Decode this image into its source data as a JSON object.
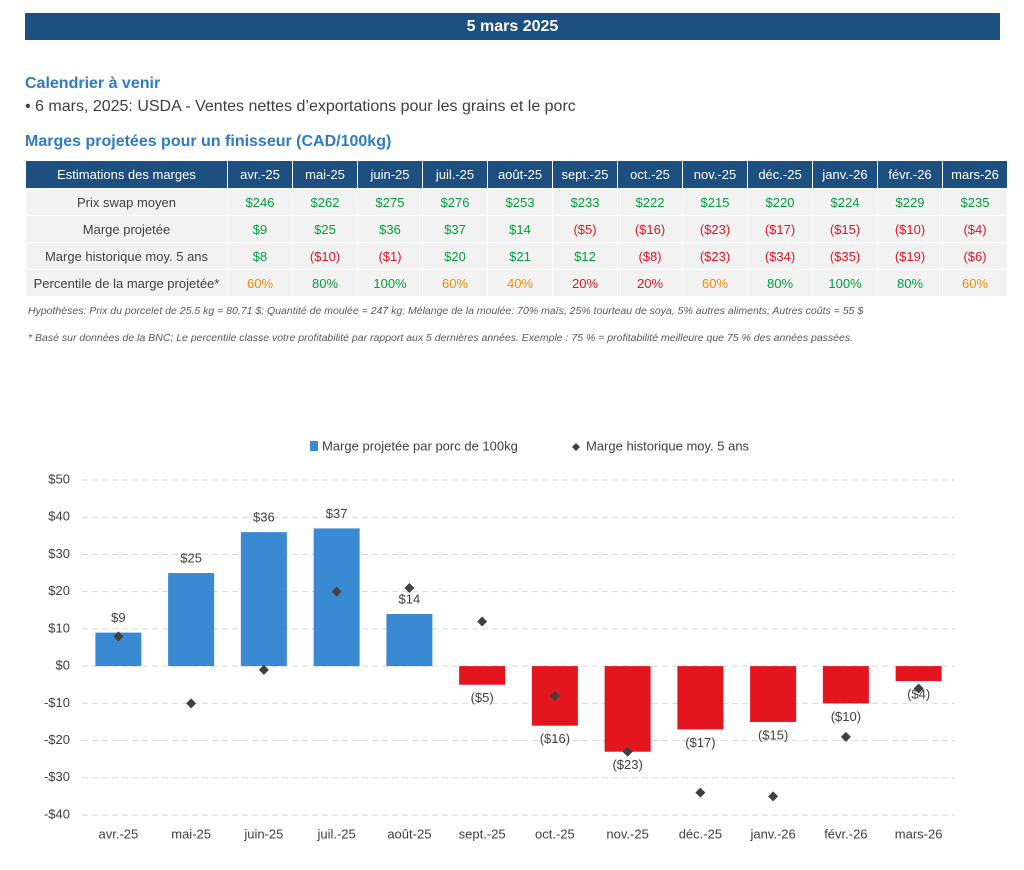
{
  "header": {
    "title": "5 mars 2025"
  },
  "calendar": {
    "title": "Calendrier à venir",
    "items": [
      "6 mars, 2025: USDA - Ventes nettes d’exportations pour les grains et le porc"
    ]
  },
  "table": {
    "title": "Marges projetées pour un finisseur (CAD/100kg)",
    "columns": [
      "Estimations des marges",
      "avr.-25",
      "mai-25",
      "juin-25",
      "juil.-25",
      "août-25",
      "sept.-25",
      "oct.-25",
      "nov.-25",
      "déc.-25",
      "janv.-26",
      "févr.-26",
      "mars-26"
    ],
    "rows": [
      {
        "label": "Prix swap moyen",
        "cells": [
          "$246",
          "$262",
          "$275",
          "$276",
          "$253",
          "$233",
          "$222",
          "$215",
          "$220",
          "$224",
          "$229",
          "$235"
        ],
        "colors": [
          "#00a03c",
          "#00a03c",
          "#00a03c",
          "#00a03c",
          "#00a03c",
          "#00a03c",
          "#00a03c",
          "#00a03c",
          "#00a03c",
          "#00a03c",
          "#00a03c",
          "#00a03c"
        ]
      },
      {
        "label": "Marge projetée",
        "cells": [
          "$9",
          "$25",
          "$36",
          "$37",
          "$14",
          "($5)",
          "($16)",
          "($23)",
          "($17)",
          "($15)",
          "($10)",
          "($4)"
        ],
        "colors": [
          "#00a03c",
          "#00a03c",
          "#00a03c",
          "#00a03c",
          "#00a03c",
          "#e3161f",
          "#e3161f",
          "#e3161f",
          "#e3161f",
          "#e3161f",
          "#e3161f",
          "#e3161f"
        ]
      },
      {
        "label": "Marge historique moy. 5 ans",
        "cells": [
          "$8",
          "($10)",
          "($1)",
          "$20",
          "$21",
          "$12",
          "($8)",
          "($23)",
          "($34)",
          "($35)",
          "($19)",
          "($6)"
        ],
        "colors": [
          "#00a03c",
          "#e3161f",
          "#e3161f",
          "#00a03c",
          "#00a03c",
          "#00a03c",
          "#e3161f",
          "#e3161f",
          "#e3161f",
          "#e3161f",
          "#e3161f",
          "#e3161f"
        ]
      },
      {
        "label": "Percentile de la marge projetée*",
        "cells": [
          "60%",
          "80%",
          "100%",
          "60%",
          "40%",
          "20%",
          "20%",
          "60%",
          "80%",
          "100%",
          "80%",
          "60%"
        ],
        "colors": [
          "#f08c00",
          "#00a03c",
          "#00a03c",
          "#f08c00",
          "#f08c00",
          "#e3161f",
          "#e3161f",
          "#f08c00",
          "#00a03c",
          "#00a03c",
          "#00a03c",
          "#f08c00"
        ]
      }
    ]
  },
  "notes": [
    "Hypothèses: Prix du porcelet de 25.5 kg = 80.71 $; Quantité de moulée = 247 kg; Mélange de la moulée: 70% maïs, 25% tourteau de soya, 5% autres aliments; Autres coûts = 55 $",
    "* Basé sur données de la BNC; Le percentile classe votre profitabilité par rapport aux 5 dernières années. Exemple : 75 % = profitabilité meilleure que 75 % des années passées."
  ],
  "chart_data": {
    "type": "bar",
    "categories": [
      "avr.-25",
      "mai-25",
      "juin-25",
      "juil.-25",
      "août-25",
      "sept.-25",
      "oct.-25",
      "nov.-25",
      "déc.-25",
      "janv.-26",
      "févr.-26",
      "mars-26"
    ],
    "series": [
      {
        "name": "Marge projetée par porc de 100kg",
        "color": "#3a8ad3",
        "negative_color": "#e3161f",
        "values": [
          9,
          25,
          36,
          37,
          14,
          -5,
          -16,
          -23,
          -17,
          -15,
          -10,
          -4
        ],
        "value_labels": [
          "$9",
          "$25",
          "$36",
          "$37",
          "$14",
          "($5)",
          "($16)",
          "($23)",
          "($17)",
          "($15)",
          "($10)",
          "($4)"
        ]
      },
      {
        "name": "Marge historique moy. 5 ans",
        "type": "scatter",
        "color": "#404040",
        "values": [
          8,
          -10,
          -1,
          20,
          21,
          12,
          -8,
          -23,
          -34,
          -35,
          -19,
          -6
        ]
      }
    ],
    "ylim": [
      -40,
      50
    ],
    "yticks": [
      {
        "value": -40,
        "label": "-$40"
      },
      {
        "value": -30,
        "label": "-$30"
      },
      {
        "value": -20,
        "label": "-$20"
      },
      {
        "value": -10,
        "label": "-$10"
      },
      {
        "value": 0,
        "label": "$0"
      },
      {
        "value": 10,
        "label": "$10"
      },
      {
        "value": 20,
        "label": "$20"
      },
      {
        "value": 30,
        "label": "$30"
      },
      {
        "value": 40,
        "label": "$40"
      },
      {
        "value": 50,
        "label": "$50"
      }
    ],
    "grid": true,
    "legend": "top"
  }
}
